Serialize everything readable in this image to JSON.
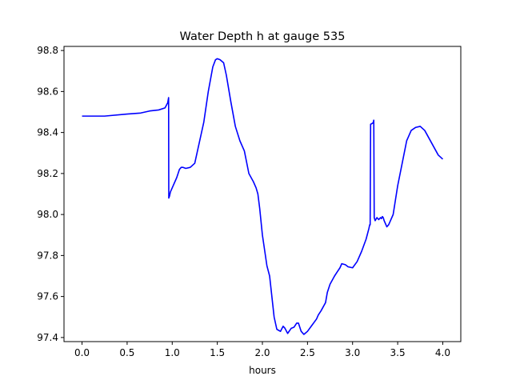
{
  "chart_data": {
    "type": "line",
    "title": "Water Depth h at gauge 535",
    "xlabel": "hours",
    "ylabel": "",
    "xlim": [
      -0.2,
      4.2
    ],
    "ylim": [
      97.38,
      98.82
    ],
    "xticks": [
      0.0,
      0.5,
      1.0,
      1.5,
      2.0,
      2.5,
      3.0,
      3.5,
      4.0
    ],
    "xtick_labels": [
      "0.0",
      "0.5",
      "1.0",
      "1.5",
      "2.0",
      "2.5",
      "3.0",
      "3.5",
      "4.0"
    ],
    "yticks": [
      97.4,
      97.6,
      97.8,
      98.0,
      98.2,
      98.4,
      98.6,
      98.8
    ],
    "ytick_labels": [
      "97.4",
      "97.6",
      "97.8",
      "98.0",
      "98.2",
      "98.4",
      "98.6",
      "98.8"
    ],
    "grid": false,
    "series": [
      {
        "color": "#0000ff",
        "x": [
          0.0,
          0.25,
          0.5,
          0.65,
          0.75,
          0.85,
          0.92,
          0.95,
          0.96,
          0.962,
          0.97,
          0.98,
          1.0,
          1.05,
          1.08,
          1.1,
          1.12,
          1.15,
          1.2,
          1.25,
          1.3,
          1.35,
          1.4,
          1.45,
          1.48,
          1.5,
          1.53,
          1.57,
          1.6,
          1.65,
          1.7,
          1.75,
          1.8,
          1.85,
          1.9,
          1.93,
          1.95,
          1.97,
          2.0,
          2.05,
          2.08,
          2.1,
          2.13,
          2.16,
          2.2,
          2.23,
          2.25,
          2.28,
          2.32,
          2.35,
          2.38,
          2.4,
          2.43,
          2.46,
          2.5,
          2.55,
          2.6,
          2.62,
          2.65,
          2.7,
          2.72,
          2.75,
          2.8,
          2.83,
          2.86,
          2.88,
          2.92,
          2.95,
          3.0,
          3.05,
          3.1,
          3.15,
          3.18,
          3.19,
          3.195,
          3.2,
          3.22,
          3.23,
          3.235,
          3.24,
          3.25,
          3.27,
          3.29,
          3.31,
          3.32,
          3.33,
          3.34,
          3.35,
          3.38,
          3.4,
          3.45,
          3.5,
          3.55,
          3.6,
          3.65,
          3.7,
          3.75,
          3.8,
          3.85,
          3.9,
          3.95,
          4.0
        ],
        "y": [
          98.48,
          98.48,
          98.49,
          98.495,
          98.505,
          98.51,
          98.52,
          98.545,
          98.57,
          98.08,
          98.09,
          98.11,
          98.13,
          98.18,
          98.22,
          98.23,
          98.23,
          98.225,
          98.23,
          98.25,
          98.35,
          98.45,
          98.6,
          98.72,
          98.755,
          98.76,
          98.755,
          98.74,
          98.68,
          98.55,
          98.43,
          98.36,
          98.31,
          98.2,
          98.16,
          98.13,
          98.1,
          98.03,
          97.9,
          97.75,
          97.7,
          97.62,
          97.5,
          97.44,
          97.43,
          97.455,
          97.445,
          97.42,
          97.445,
          97.45,
          97.47,
          97.47,
          97.43,
          97.415,
          97.43,
          97.46,
          97.49,
          97.51,
          97.53,
          97.57,
          97.62,
          97.66,
          97.7,
          97.72,
          97.74,
          97.76,
          97.755,
          97.745,
          97.74,
          97.77,
          97.82,
          97.88,
          97.93,
          97.95,
          97.95,
          98.44,
          98.445,
          98.45,
          98.46,
          97.985,
          97.97,
          97.985,
          97.975,
          97.985,
          97.98,
          97.99,
          97.985,
          97.97,
          97.94,
          97.95,
          98.0,
          98.14,
          98.25,
          98.36,
          98.41,
          98.425,
          98.43,
          98.41,
          98.37,
          98.33,
          98.29,
          98.27
        ]
      }
    ]
  }
}
